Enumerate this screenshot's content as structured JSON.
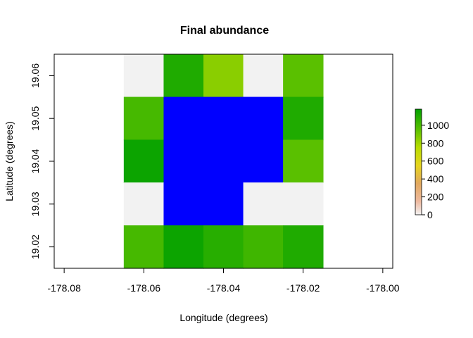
{
  "chart_data": {
    "type": "heatmap",
    "title": "Final abundance",
    "xlabel": "Longitude (degrees)",
    "ylabel": "Latitude (degrees)",
    "x_ticks": [
      -178.08,
      -178.06,
      -178.04,
      -178.02,
      -178.0
    ],
    "x_tick_labels": [
      "-178.08",
      "-178.06",
      "-178.04",
      "-178.02",
      "-178.00"
    ],
    "y_ticks": [
      19.02,
      19.03,
      19.04,
      19.05,
      19.06
    ],
    "y_tick_labels": [
      "19.02",
      "19.03",
      "19.04",
      "19.05",
      "19.06"
    ],
    "xlim": [
      -178.0825,
      -177.9975
    ],
    "ylim": [
      19.015,
      19.065
    ],
    "cell_size": 0.01,
    "grid": false,
    "cells": [
      {
        "lon": -178.06,
        "lat": 19.06,
        "value": 0
      },
      {
        "lon": -178.05,
        "lat": 19.06,
        "value": 1100
      },
      {
        "lon": -178.04,
        "lat": 19.06,
        "value": 850
      },
      {
        "lon": -178.03,
        "lat": 19.06,
        "value": 0
      },
      {
        "lon": -178.02,
        "lat": 19.06,
        "value": 950
      },
      {
        "lon": -178.06,
        "lat": 19.05,
        "value": 1000
      },
      {
        "lon": -178.05,
        "lat": 19.05,
        "value": null
      },
      {
        "lon": -178.04,
        "lat": 19.05,
        "value": null
      },
      {
        "lon": -178.03,
        "lat": 19.05,
        "value": null
      },
      {
        "lon": -178.02,
        "lat": 19.05,
        "value": 1100
      },
      {
        "lon": -178.06,
        "lat": 19.04,
        "value": 1150
      },
      {
        "lon": -178.05,
        "lat": 19.04,
        "value": null
      },
      {
        "lon": -178.04,
        "lat": 19.04,
        "value": null
      },
      {
        "lon": -178.03,
        "lat": 19.04,
        "value": null
      },
      {
        "lon": -178.02,
        "lat": 19.04,
        "value": 950
      },
      {
        "lon": -178.06,
        "lat": 19.03,
        "value": 0
      },
      {
        "lon": -178.05,
        "lat": 19.03,
        "value": null
      },
      {
        "lon": -178.04,
        "lat": 19.03,
        "value": null
      },
      {
        "lon": -178.03,
        "lat": 19.03,
        "value": 0
      },
      {
        "lon": -178.02,
        "lat": 19.03,
        "value": 0
      },
      {
        "lon": -178.06,
        "lat": 19.02,
        "value": 1000
      },
      {
        "lon": -178.05,
        "lat": 19.02,
        "value": 1150
      },
      {
        "lon": -178.04,
        "lat": 19.02,
        "value": 1080
      },
      {
        "lon": -178.03,
        "lat": 19.02,
        "value": 1020
      },
      {
        "lon": -178.02,
        "lat": 19.02,
        "value": 1100
      }
    ],
    "na_color": "#0000ff",
    "legend": {
      "placement": "right",
      "min": 0,
      "max": 1180,
      "ticks": [
        0,
        200,
        400,
        600,
        800,
        1000
      ],
      "tick_labels": [
        "0",
        "200",
        "400",
        "600",
        "800",
        "1000"
      ],
      "color_stops": [
        {
          "value": 0,
          "color": "#f2f2f2"
        },
        {
          "value": 150,
          "color": "#eeb99f"
        },
        {
          "value": 350,
          "color": "#e2a85e"
        },
        {
          "value": 550,
          "color": "#e6d41e"
        },
        {
          "value": 750,
          "color": "#b9dc00"
        },
        {
          "value": 950,
          "color": "#5ac000"
        },
        {
          "value": 1180,
          "color": "#00a000"
        }
      ]
    }
  }
}
